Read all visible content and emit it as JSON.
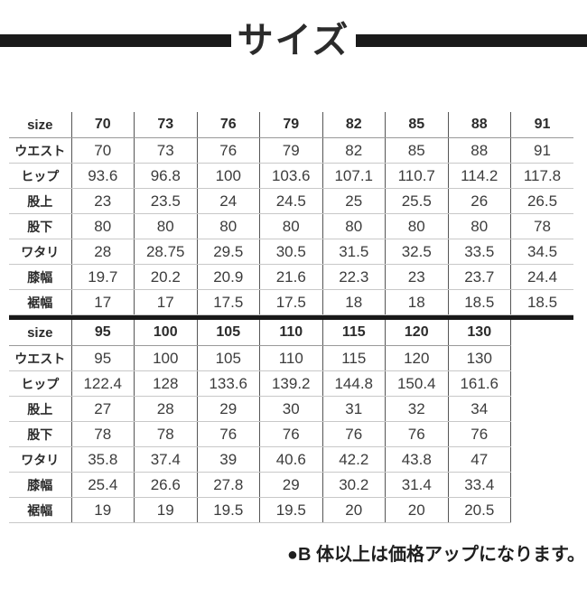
{
  "title": "サイズ",
  "note": "●B 体以上は価格アップになります。",
  "colors": {
    "bar_black": "#1a1a1a",
    "header_text": "#2b2b2b",
    "value_text": "#3c3c3c",
    "grid_vertical": "#555555",
    "grid_horizontal": "#c8c8c8",
    "grid_header": "#999999"
  },
  "tables": [
    {
      "header_label": "size",
      "sizes": [
        "70",
        "73",
        "76",
        "79",
        "82",
        "85",
        "88",
        "91"
      ],
      "rows": [
        {
          "label": "ウエスト",
          "values": [
            "70",
            "73",
            "76",
            "79",
            "82",
            "85",
            "88",
            "91"
          ]
        },
        {
          "label": "ヒップ",
          "values": [
            "93.6",
            "96.8",
            "100",
            "103.6",
            "107.1",
            "110.7",
            "114.2",
            "117.8"
          ]
        },
        {
          "label": "股上",
          "values": [
            "23",
            "23.5",
            "24",
            "24.5",
            "25",
            "25.5",
            "26",
            "26.5"
          ]
        },
        {
          "label": "股下",
          "values": [
            "80",
            "80",
            "80",
            "80",
            "80",
            "80",
            "80",
            "78"
          ]
        },
        {
          "label": "ワタリ",
          "values": [
            "28",
            "28.75",
            "29.5",
            "30.5",
            "31.5",
            "32.5",
            "33.5",
            "34.5"
          ]
        },
        {
          "label": "膝幅",
          "values": [
            "19.7",
            "20.2",
            "20.9",
            "21.6",
            "22.3",
            "23",
            "23.7",
            "24.4"
          ]
        },
        {
          "label": "裾幅",
          "values": [
            "17",
            "17",
            "17.5",
            "17.5",
            "18",
            "18",
            "18.5",
            "18.5"
          ]
        }
      ]
    },
    {
      "header_label": "size",
      "sizes": [
        "95",
        "100",
        "105",
        "110",
        "115",
        "120",
        "130"
      ],
      "rows": [
        {
          "label": "ウエスト",
          "values": [
            "95",
            "100",
            "105",
            "110",
            "115",
            "120",
            "130"
          ]
        },
        {
          "label": "ヒップ",
          "values": [
            "122.4",
            "128",
            "133.6",
            "139.2",
            "144.8",
            "150.4",
            "161.6"
          ]
        },
        {
          "label": "股上",
          "values": [
            "27",
            "28",
            "29",
            "30",
            "31",
            "32",
            "34"
          ]
        },
        {
          "label": "股下",
          "values": [
            "78",
            "78",
            "76",
            "76",
            "76",
            "76",
            "76"
          ]
        },
        {
          "label": "ワタリ",
          "values": [
            "35.8",
            "37.4",
            "39",
            "40.6",
            "42.2",
            "43.8",
            "47"
          ]
        },
        {
          "label": "膝幅",
          "values": [
            "25.4",
            "26.6",
            "27.8",
            "29",
            "30.2",
            "31.4",
            "33.4"
          ]
        },
        {
          "label": "裾幅",
          "values": [
            "19",
            "19",
            "19.5",
            "19.5",
            "20",
            "20",
            "20.5"
          ]
        }
      ]
    }
  ]
}
